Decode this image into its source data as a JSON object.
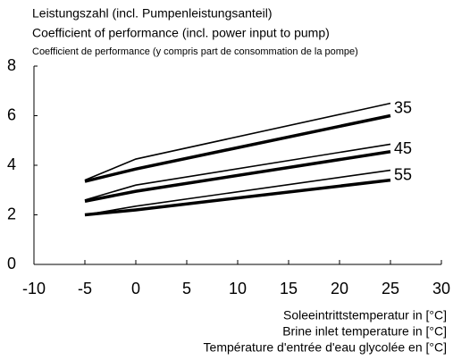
{
  "chart_data": {
    "type": "line",
    "title_lines": [
      "Leistungszahl (incl. Pumpenleistungsanteil)",
      "Coefficient of performance (incl. power input to pump)",
      "Coefficient de performance (y compris part de consommation de la pompe)"
    ],
    "xlabel_lines": [
      "Soleeintrittstemperatur in [°C]",
      "Brine inlet temperature in [°C]",
      "Température d'entrée d'eau glycolée en [°C]"
    ],
    "xlim": [
      -10,
      30
    ],
    "xticks": [
      -10,
      -5,
      0,
      5,
      10,
      15,
      20,
      25,
      30
    ],
    "ylim": [
      0,
      8
    ],
    "yticks": [
      0,
      2,
      4,
      6,
      8
    ],
    "grid": false,
    "series": [
      {
        "color": "#000000",
        "line_width": "thin",
        "x": [
          -5,
          0,
          25
        ],
        "values": [
          3.4,
          4.25,
          6.5
        ]
      },
      {
        "color": "#000000",
        "line_width": "thick",
        "x": [
          -5,
          0,
          25
        ],
        "values": [
          3.35,
          3.85,
          6.0
        ]
      },
      {
        "color": "#000000",
        "line_width": "thin",
        "x": [
          -5,
          0,
          25
        ],
        "values": [
          2.6,
          3.2,
          4.85
        ]
      },
      {
        "color": "#000000",
        "line_width": "thick",
        "x": [
          -5,
          0,
          25
        ],
        "values": [
          2.55,
          2.95,
          4.55
        ]
      },
      {
        "color": "#000000",
        "line_width": "thin",
        "x": [
          -5,
          0,
          25
        ],
        "values": [
          2.0,
          2.35,
          3.8
        ]
      },
      {
        "color": "#000000",
        "line_width": "thick",
        "x": [
          -5,
          0,
          25
        ],
        "values": [
          2.0,
          2.2,
          3.4
        ]
      }
    ],
    "annotations": [
      "35",
      "45",
      "55"
    ]
  }
}
